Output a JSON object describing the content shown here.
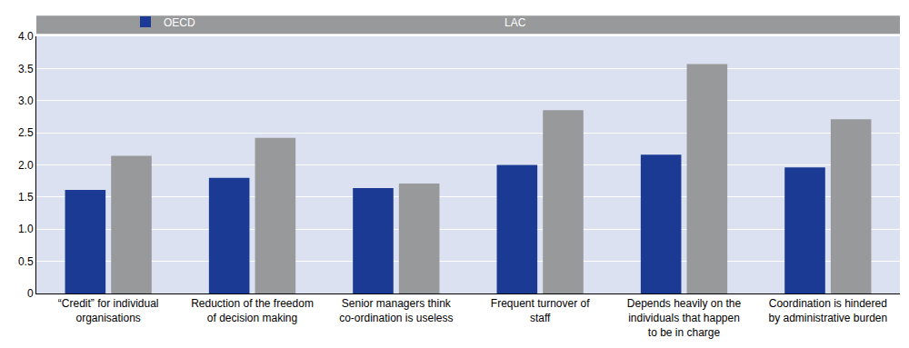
{
  "chart_data": {
    "type": "bar",
    "categories": [
      "“Credit” for individual organisations",
      "Reduction of the freedom of decision making",
      "Senior managers think co-ordination is useless",
      "Frequent turnover of staff",
      "Depends heavily on the individuals that happen to be in charge",
      "Coordination is hindered by administrative burden"
    ],
    "series": [
      {
        "name": "OECD",
        "color": "#1a3a94",
        "values": [
          1.61,
          1.8,
          1.64,
          2.0,
          2.16,
          1.96
        ]
      },
      {
        "name": "LAC",
        "color": "#98999b",
        "values": [
          2.14,
          2.42,
          1.71,
          2.85,
          3.57,
          2.71
        ]
      }
    ],
    "ylim": [
      0,
      4
    ],
    "yticks": [
      0,
      0.5,
      {
        "value": 1,
        "label": "1.0"
      },
      1.5,
      {
        "value": 2,
        "label": "2.0"
      },
      2.5,
      {
        "value": 3,
        "label": "3.0"
      },
      3.5,
      {
        "value": 4,
        "label": "4.0"
      }
    ],
    "grid": true,
    "legend": "top",
    "data_labels": false
  }
}
